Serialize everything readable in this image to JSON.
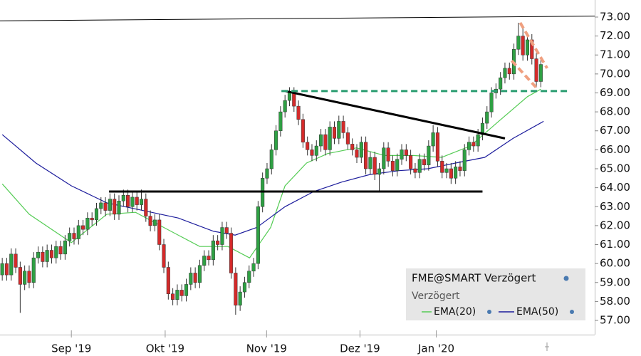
{
  "chart_data": {
    "type": "candlestick",
    "title": "FME@SMART Verzögert",
    "subtitle": "Verzögert",
    "up_color": "#2ea043",
    "down_color": "#d42a2a",
    "xlim": [
      -0.5,
      132
    ],
    "ylim": [
      56.25,
      73.9
    ],
    "grid": false,
    "xticks": [
      {
        "value": 15.4,
        "label": "Sep '19"
      },
      {
        "value": 36.3,
        "label": "Okt '19"
      },
      {
        "value": 58.9,
        "label": "Nov '19"
      },
      {
        "value": 79.7,
        "label": "Dez '19"
      },
      {
        "value": 96.7,
        "label": "Jan '20"
      }
    ],
    "yticks": [
      {
        "value": 57,
        "label": "57.00"
      },
      {
        "value": 58,
        "label": "58.00"
      },
      {
        "value": 59,
        "label": "59.00"
      },
      {
        "value": 60,
        "label": "60.00"
      },
      {
        "value": 61,
        "label": "61.00"
      },
      {
        "value": 62,
        "label": "62.00"
      },
      {
        "value": 63,
        "label": "63.00"
      },
      {
        "value": 64,
        "label": "64.00"
      },
      {
        "value": 65,
        "label": "65.00"
      },
      {
        "value": 66,
        "label": "66.00"
      },
      {
        "value": 67,
        "label": "67.00"
      },
      {
        "value": 68,
        "label": "68.00"
      },
      {
        "value": 69,
        "label": "69.00"
      },
      {
        "value": 70,
        "label": "70.00"
      },
      {
        "value": 71,
        "label": "71.00"
      },
      {
        "value": 72,
        "label": "72.00"
      },
      {
        "value": 73,
        "label": "73.00"
      }
    ],
    "open": [
      59.4,
      60.0,
      59.4,
      60.5,
      59.8,
      58.9,
      59.6,
      59.0,
      60.3,
      60.6,
      60.1,
      60.7,
      60.3,
      60.9,
      60.5,
      61.2,
      61.6,
      61.3,
      62.0,
      61.8,
      62.4,
      62.3,
      62.9,
      63.2,
      62.8,
      63.4,
      62.6,
      63.3,
      63.6,
      63.0,
      63.5,
      63.1,
      63.4,
      62.5,
      62.0,
      62.3,
      61.0,
      59.8,
      58.4,
      58.1,
      58.6,
      58.3,
      58.9,
      59.5,
      59.0,
      59.9,
      60.4,
      60.2,
      61.2,
      61.0,
      61.9,
      61.6,
      59.5,
      57.8,
      58.5,
      59.0,
      59.6,
      60.0,
      63.0,
      64.5,
      65.0,
      66.0,
      67.0,
      68.0,
      68.6,
      69.0,
      68.3,
      67.6,
      66.4,
      66.0,
      65.7,
      66.2,
      66.8,
      66.0,
      67.2,
      66.6,
      67.5,
      66.9,
      66.3,
      66.0,
      65.6,
      66.4,
      65.0,
      65.6,
      64.7,
      65.0,
      66.1,
      65.4,
      64.9,
      65.5,
      66.0,
      65.7,
      65.0,
      64.8,
      65.5,
      65.2,
      66.2,
      66.9,
      65.4,
      64.8,
      65.0,
      64.5,
      65.1,
      64.9,
      66.0,
      66.4,
      66.2,
      66.8,
      67.4,
      68.0,
      69.0,
      69.2,
      69.8,
      70.3,
      70.0,
      71.3,
      72.0,
      71.0,
      71.8,
      70.8,
      69.6
    ],
    "high": [
      60.3,
      60.3,
      60.8,
      60.8,
      60.1,
      59.9,
      59.9,
      60.6,
      60.9,
      60.9,
      61.0,
      61.0,
      61.2,
      61.2,
      61.5,
      61.9,
      61.9,
      62.3,
      62.3,
      62.7,
      62.7,
      63.2,
      63.5,
      63.5,
      63.7,
      63.7,
      63.6,
      63.9,
      63.9,
      63.8,
      63.8,
      63.9,
      63.7,
      62.8,
      62.6,
      62.6,
      61.3,
      60.1,
      58.7,
      58.9,
      58.9,
      59.2,
      59.8,
      59.8,
      60.2,
      60.7,
      60.7,
      61.5,
      61.5,
      62.2,
      62.2,
      61.9,
      59.8,
      58.8,
      59.3,
      59.9,
      60.3,
      63.3,
      64.8,
      65.3,
      66.3,
      67.3,
      68.3,
      68.9,
      69.3,
      69.3,
      68.6,
      67.9,
      66.7,
      66.3,
      66.5,
      67.1,
      67.1,
      67.5,
      67.5,
      67.8,
      67.8,
      67.2,
      66.6,
      66.3,
      66.7,
      66.7,
      65.9,
      65.9,
      65.3,
      66.4,
      66.4,
      65.7,
      65.8,
      66.3,
      66.3,
      66.0,
      65.3,
      65.8,
      65.8,
      66.5,
      67.3,
      67.2,
      65.7,
      65.3,
      65.3,
      65.4,
      65.4,
      66.3,
      66.7,
      66.7,
      67.1,
      67.7,
      68.3,
      69.3,
      69.5,
      70.1,
      70.6,
      70.6,
      71.6,
      72.7,
      72.5,
      72.1,
      72.1,
      71.1,
      70.8
    ],
    "low": [
      59.1,
      59.1,
      59.1,
      59.5,
      57.4,
      58.6,
      58.7,
      58.7,
      60.0,
      59.8,
      59.8,
      60.0,
      60.0,
      60.2,
      60.2,
      60.9,
      61.0,
      61.0,
      61.5,
      61.5,
      62.0,
      62.0,
      62.6,
      62.5,
      62.5,
      62.3,
      62.3,
      63.0,
      62.7,
      62.7,
      62.8,
      62.8,
      62.2,
      61.7,
      61.7,
      60.7,
      59.5,
      58.1,
      57.8,
      57.8,
      58.0,
      58.0,
      58.6,
      58.7,
      58.7,
      59.6,
      59.9,
      59.9,
      60.7,
      60.7,
      61.3,
      59.2,
      57.3,
      57.5,
      58.2,
      58.7,
      59.3,
      59.7,
      62.7,
      64.2,
      64.7,
      65.7,
      66.7,
      67.7,
      68.3,
      68.0,
      67.3,
      66.1,
      65.7,
      65.4,
      65.4,
      65.9,
      65.7,
      65.7,
      66.3,
      66.3,
      66.6,
      66.0,
      65.7,
      65.3,
      65.3,
      64.7,
      64.7,
      64.4,
      63.8,
      64.7,
      65.1,
      64.6,
      64.6,
      65.2,
      65.4,
      64.7,
      64.5,
      64.5,
      64.9,
      64.9,
      65.9,
      65.1,
      64.5,
      64.5,
      64.2,
      64.2,
      64.6,
      64.6,
      65.7,
      65.9,
      65.9,
      66.5,
      67.1,
      67.7,
      68.7,
      68.9,
      69.5,
      69.7,
      69.7,
      71.0,
      70.7,
      70.7,
      70.5,
      69.3,
      69.3
    ],
    "close": [
      60.0,
      59.4,
      60.5,
      59.8,
      58.9,
      59.6,
      59.0,
      60.3,
      60.6,
      60.1,
      60.7,
      60.3,
      60.9,
      60.5,
      61.2,
      61.6,
      61.3,
      62.0,
      61.8,
      62.4,
      62.3,
      62.9,
      63.2,
      62.8,
      63.4,
      62.6,
      63.3,
      63.6,
      63.0,
      63.5,
      63.1,
      63.4,
      62.5,
      62.0,
      62.3,
      61.0,
      59.8,
      58.4,
      58.1,
      58.6,
      58.3,
      58.9,
      59.5,
      59.0,
      59.9,
      60.4,
      60.2,
      61.2,
      61.0,
      61.9,
      61.6,
      59.5,
      57.8,
      58.5,
      59.0,
      59.6,
      60.0,
      63.0,
      64.5,
      65.0,
      66.0,
      67.0,
      68.0,
      68.6,
      69.0,
      68.3,
      67.6,
      66.4,
      66.0,
      65.7,
      66.2,
      66.8,
      66.0,
      67.2,
      66.6,
      67.5,
      66.9,
      66.3,
      66.0,
      65.6,
      66.4,
      65.0,
      65.6,
      64.7,
      65.0,
      66.1,
      65.4,
      64.9,
      65.5,
      66.0,
      65.7,
      65.0,
      64.8,
      65.5,
      65.2,
      66.2,
      66.9,
      65.4,
      64.8,
      65.0,
      64.5,
      65.1,
      64.9,
      66.0,
      66.4,
      66.2,
      66.8,
      67.4,
      68.0,
      69.0,
      69.2,
      69.8,
      70.3,
      70.0,
      71.3,
      72.0,
      71.0,
      71.8,
      70.8,
      69.6,
      70.5
    ],
    "series": [
      {
        "name": "EMA(20)",
        "color": "#55cc55",
        "x": [
          0,
          6,
          15.4,
          23.3,
          29.7,
          36,
          44,
          50.3,
          55.1,
          59.8,
          63,
          67.8,
          72.5,
          78.9,
          85.2,
          91.6,
          97.9,
          104.3,
          110.6,
          117,
          120
        ],
        "values": [
          64.2,
          62.6,
          61.1,
          62.6,
          62.7,
          61.9,
          60.9,
          60.9,
          60.3,
          61.9,
          64.1,
          65.3,
          65.8,
          66.1,
          65.7,
          65.7,
          65.6,
          66.2,
          67.5,
          68.8,
          69.2
        ]
      },
      {
        "name": "EMA(50)",
        "color": "#1c1c9c",
        "x": [
          0,
          7.5,
          15.4,
          23.3,
          31.3,
          39.2,
          47.1,
          51.9,
          56.7,
          63,
          69.4,
          75.7,
          82,
          88.4,
          94.8,
          101,
          107.5,
          113.8,
          120.6
        ],
        "values": [
          66.8,
          65.3,
          64.1,
          63.2,
          62.8,
          62.4,
          61.7,
          61.5,
          61.9,
          63.0,
          63.8,
          64.3,
          64.7,
          64.9,
          65.0,
          65.3,
          65.6,
          66.6,
          67.5
        ]
      }
    ],
    "trendlines": [
      {
        "x": [
          -0.5,
          132
        ],
        "y": [
          72.8,
          73.05
        ],
        "color": "#000000",
        "width": 1,
        "dash": false
      },
      {
        "x": [
          23.8,
          107
        ],
        "y": [
          63.8,
          63.8
        ],
        "color": "#000000",
        "width": 3,
        "dash": false
      },
      {
        "x": [
          63,
          112
        ],
        "y": [
          69.1,
          66.6
        ],
        "color": "#000000",
        "width": 3,
        "dash": false
      },
      {
        "x": [
          62.2,
          126.5
        ],
        "y": [
          69.1,
          69.1
        ],
        "color": "#2a9d70",
        "width": 3,
        "dash": true
      },
      {
        "x": [
          115.4,
          121.4
        ],
        "y": [
          72.7,
          70.3
        ],
        "color": "#f0a080",
        "width": 4,
        "dash": true
      },
      {
        "x": [
          113.5,
          118.9
        ],
        "y": [
          70.7,
          69.3
        ],
        "color": "#f0a080",
        "width": 4,
        "dash": true
      }
    ]
  }
}
